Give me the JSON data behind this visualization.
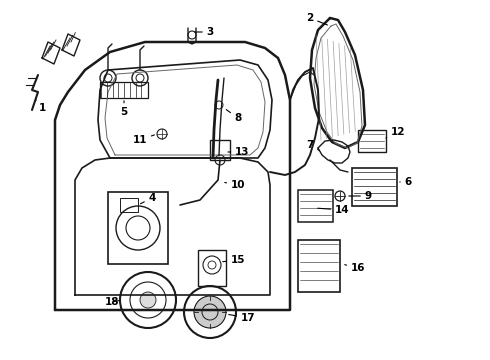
{
  "bg_color": "#ffffff",
  "line_color": "#1a1a1a",
  "fig_width": 4.9,
  "fig_height": 3.6,
  "dpi": 100,
  "label_fs": 7.5
}
